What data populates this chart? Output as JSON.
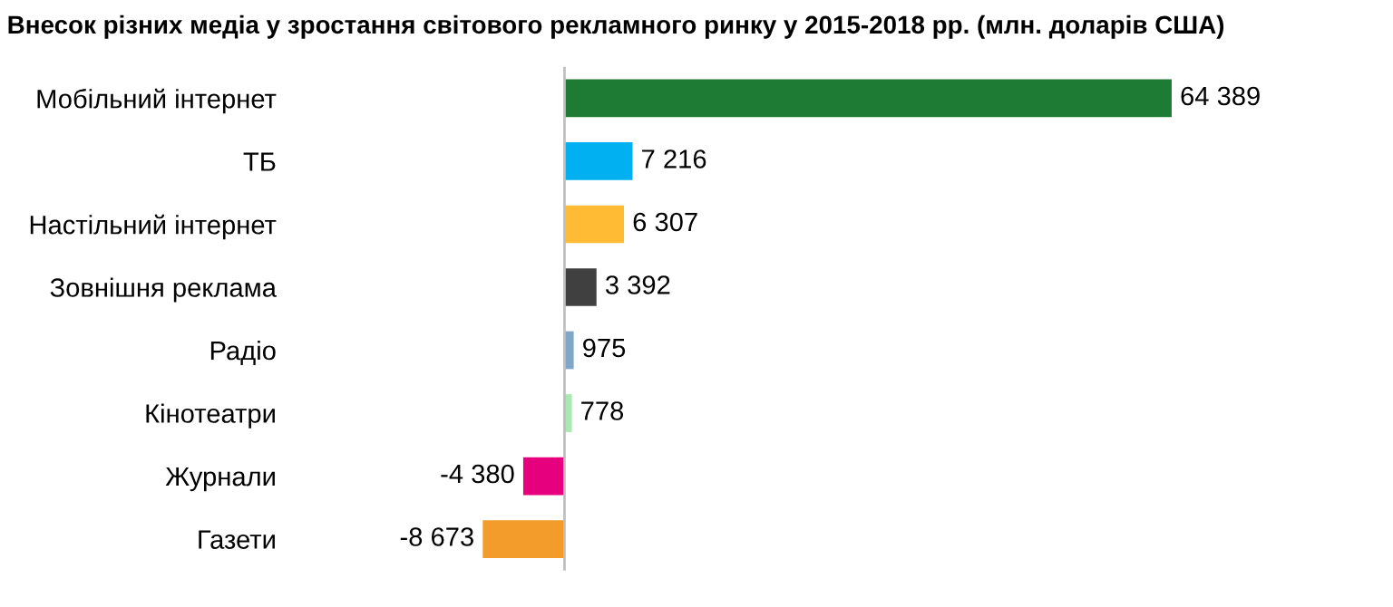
{
  "chart_data": {
    "type": "bar",
    "orientation": "horizontal",
    "title": "Внесок різних медіа у зростання світового рекламного ринку у 2015-2018 рр. (млн. доларів США)",
    "categories": [
      "Мобільний інтернет",
      "ТБ",
      "Настільний інтернет",
      "Зовнішня реклама",
      "Радіо",
      "Кінотеатри",
      "Журнали",
      "Газети"
    ],
    "values": [
      64389,
      7216,
      6307,
      3392,
      975,
      778,
      -4380,
      -8673
    ],
    "colors": [
      "#1e7b34",
      "#00b0f0",
      "#ffbb33",
      "#404040",
      "#7fa7c9",
      "#a9e8b0",
      "#e6007e",
      "#f39c2c"
    ],
    "value_labels": [
      "64 389",
      "7 216",
      "6 307",
      "3 392",
      "975",
      "778",
      "-4 380",
      "-8 673"
    ],
    "grid": false,
    "legend": false
  }
}
